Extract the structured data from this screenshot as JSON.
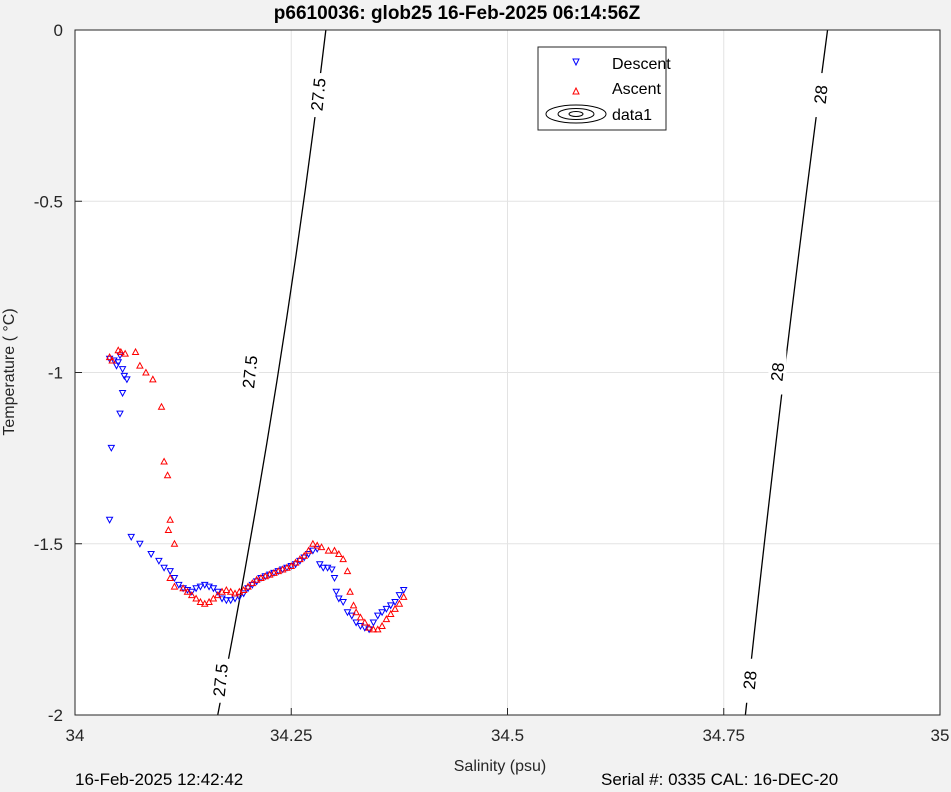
{
  "chart_data": {
    "type": "scatter",
    "title": "p6610036: glob25 16-Feb-2025 06:14:56Z",
    "xlabel": "Salinity (psu)",
    "ylabel": "Temperature (   °C)",
    "xlim": [
      34,
      35
    ],
    "ylim": [
      -2,
      0
    ],
    "xticks": [
      34,
      34.25,
      34.5,
      34.75,
      35
    ],
    "xtick_labels": [
      "34",
      "34.25",
      "34.5",
      "34.75",
      "35"
    ],
    "yticks": [
      0,
      -0.5,
      -1,
      -1.5,
      -2
    ],
    "ytick_labels": [
      "0",
      "-0.5",
      "-1",
      "-1.5",
      "-2"
    ],
    "grid": true,
    "legend_position": "top-right",
    "legend": [
      "Descent",
      "Ascent",
      "data1"
    ],
    "series": [
      {
        "name": "Descent",
        "marker": "triangle-down",
        "color": "#0000ff",
        "points": [
          [
            34.04,
            -0.96
          ],
          [
            34.045,
            -0.965
          ],
          [
            34.05,
            -0.97
          ],
          [
            34.048,
            -0.98
          ],
          [
            34.052,
            -0.95
          ],
          [
            34.055,
            -0.99
          ],
          [
            34.057,
            -1.01
          ],
          [
            34.06,
            -1.02
          ],
          [
            34.055,
            -1.06
          ],
          [
            34.052,
            -1.12
          ],
          [
            34.042,
            -1.22
          ],
          [
            34.04,
            -1.43
          ],
          [
            34.065,
            -1.48
          ],
          [
            34.075,
            -1.5
          ],
          [
            34.088,
            -1.53
          ],
          [
            34.097,
            -1.55
          ],
          [
            34.103,
            -1.57
          ],
          [
            34.11,
            -1.58
          ],
          [
            34.115,
            -1.6
          ],
          [
            34.12,
            -1.62
          ],
          [
            34.125,
            -1.63
          ],
          [
            34.13,
            -1.635
          ],
          [
            34.135,
            -1.64
          ],
          [
            34.14,
            -1.63
          ],
          [
            34.145,
            -1.625
          ],
          [
            34.15,
            -1.62
          ],
          [
            34.155,
            -1.625
          ],
          [
            34.16,
            -1.63
          ],
          [
            34.165,
            -1.64
          ],
          [
            34.17,
            -1.66
          ],
          [
            34.175,
            -1.665
          ],
          [
            34.18,
            -1.665
          ],
          [
            34.185,
            -1.66
          ],
          [
            34.19,
            -1.655
          ],
          [
            34.195,
            -1.645
          ],
          [
            34.2,
            -1.63
          ],
          [
            34.205,
            -1.62
          ],
          [
            34.21,
            -1.61
          ],
          [
            34.215,
            -1.6
          ],
          [
            34.22,
            -1.595
          ],
          [
            34.225,
            -1.59
          ],
          [
            34.23,
            -1.585
          ],
          [
            34.235,
            -1.58
          ],
          [
            34.24,
            -1.575
          ],
          [
            34.245,
            -1.57
          ],
          [
            34.25,
            -1.565
          ],
          [
            34.255,
            -1.56
          ],
          [
            34.26,
            -1.55
          ],
          [
            34.265,
            -1.54
          ],
          [
            34.27,
            -1.53
          ],
          [
            34.275,
            -1.52
          ],
          [
            34.28,
            -1.515
          ],
          [
            34.283,
            -1.56
          ],
          [
            34.287,
            -1.57
          ],
          [
            34.292,
            -1.57
          ],
          [
            34.297,
            -1.575
          ],
          [
            34.3,
            -1.6
          ],
          [
            34.302,
            -1.64
          ],
          [
            34.305,
            -1.66
          ],
          [
            34.31,
            -1.67
          ],
          [
            34.315,
            -1.7
          ],
          [
            34.32,
            -1.71
          ],
          [
            34.325,
            -1.73
          ],
          [
            34.33,
            -1.74
          ],
          [
            34.335,
            -1.745
          ],
          [
            34.34,
            -1.75
          ],
          [
            34.345,
            -1.73
          ],
          [
            34.35,
            -1.71
          ],
          [
            34.355,
            -1.7
          ],
          [
            34.36,
            -1.69
          ],
          [
            34.365,
            -1.68
          ],
          [
            34.37,
            -1.67
          ],
          [
            34.375,
            -1.65
          ],
          [
            34.38,
            -1.635
          ]
        ]
      },
      {
        "name": "Ascent",
        "marker": "triangle-up",
        "color": "#ff0000",
        "points": [
          [
            34.04,
            -0.955
          ],
          [
            34.043,
            -0.965
          ],
          [
            34.05,
            -0.935
          ],
          [
            34.053,
            -0.94
          ],
          [
            34.058,
            -0.945
          ],
          [
            34.07,
            -0.94
          ],
          [
            34.075,
            -0.98
          ],
          [
            34.082,
            -1.0
          ],
          [
            34.09,
            -1.02
          ],
          [
            34.1,
            -1.1
          ],
          [
            34.103,
            -1.26
          ],
          [
            34.107,
            -1.3
          ],
          [
            34.11,
            -1.43
          ],
          [
            34.108,
            -1.46
          ],
          [
            34.115,
            -1.5
          ],
          [
            34.11,
            -1.6
          ],
          [
            34.115,
            -1.625
          ],
          [
            34.125,
            -1.63
          ],
          [
            34.13,
            -1.64
          ],
          [
            34.135,
            -1.65
          ],
          [
            34.14,
            -1.66
          ],
          [
            34.145,
            -1.67
          ],
          [
            34.15,
            -1.675
          ],
          [
            34.155,
            -1.67
          ],
          [
            34.16,
            -1.66
          ],
          [
            34.165,
            -1.65
          ],
          [
            34.17,
            -1.64
          ],
          [
            34.175,
            -1.635
          ],
          [
            34.18,
            -1.64
          ],
          [
            34.185,
            -1.645
          ],
          [
            34.19,
            -1.64
          ],
          [
            34.195,
            -1.635
          ],
          [
            34.2,
            -1.625
          ],
          [
            34.205,
            -1.615
          ],
          [
            34.21,
            -1.605
          ],
          [
            34.215,
            -1.6
          ],
          [
            34.22,
            -1.595
          ],
          [
            34.225,
            -1.59
          ],
          [
            34.23,
            -1.585
          ],
          [
            34.235,
            -1.58
          ],
          [
            34.24,
            -1.575
          ],
          [
            34.245,
            -1.57
          ],
          [
            34.25,
            -1.565
          ],
          [
            34.255,
            -1.555
          ],
          [
            34.26,
            -1.545
          ],
          [
            34.265,
            -1.535
          ],
          [
            34.27,
            -1.52
          ],
          [
            34.275,
            -1.5
          ],
          [
            34.28,
            -1.505
          ],
          [
            34.285,
            -1.51
          ],
          [
            34.293,
            -1.52
          ],
          [
            34.3,
            -1.52
          ],
          [
            34.305,
            -1.53
          ],
          [
            34.31,
            -1.545
          ],
          [
            34.315,
            -1.58
          ],
          [
            34.318,
            -1.64
          ],
          [
            34.322,
            -1.68
          ],
          [
            34.325,
            -1.7
          ],
          [
            34.33,
            -1.715
          ],
          [
            34.335,
            -1.73
          ],
          [
            34.34,
            -1.745
          ],
          [
            34.345,
            -1.75
          ],
          [
            34.35,
            -1.75
          ],
          [
            34.355,
            -1.74
          ],
          [
            34.36,
            -1.72
          ],
          [
            34.365,
            -1.705
          ],
          [
            34.37,
            -1.69
          ],
          [
            34.375,
            -1.675
          ],
          [
            34.38,
            -1.655
          ]
        ]
      }
    ],
    "contours": [
      {
        "level_label": "27.5",
        "points": [
          [
            34.165,
            -2
          ],
          [
            34.235,
            -1
          ],
          [
            34.29,
            0
          ]
        ],
        "labels": [
          [
            34.168,
            -1.9
          ],
          [
            34.202,
            -1.0
          ],
          [
            34.281,
            -0.19
          ]
        ]
      },
      {
        "level_label": "28",
        "points": [
          [
            34.775,
            -2
          ],
          [
            34.82,
            -1
          ],
          [
            34.87,
            0
          ]
        ],
        "labels": [
          [
            34.78,
            -1.9
          ],
          [
            34.812,
            -1.0
          ],
          [
            34.862,
            -0.19
          ]
        ]
      }
    ]
  },
  "footer": {
    "left": "16-Feb-2025 12:42:42",
    "right": "Serial #: 0335  CAL: 16-DEC-20"
  }
}
